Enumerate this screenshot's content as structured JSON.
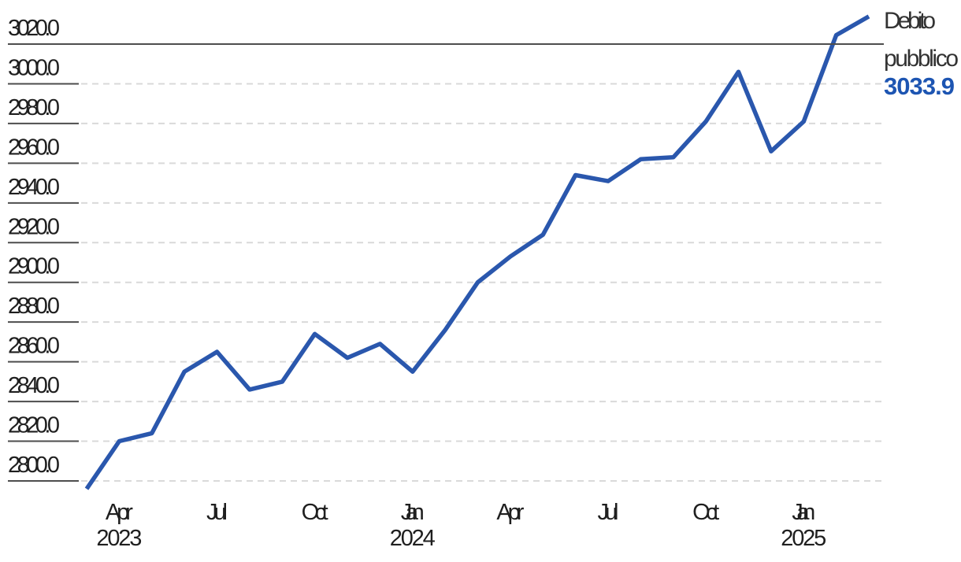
{
  "page": {
    "background": "#ffffff"
  },
  "chart_data": {
    "type": "line",
    "title": "",
    "series": [
      {
        "name": "Debito pubblico",
        "color": "#2a57ad",
        "categories": [
          "Mar 2023",
          "Apr 2023",
          "May 2023",
          "Jun 2023",
          "Jul 2023",
          "Aug 2023",
          "Sep 2023",
          "Oct 2023",
          "Nov 2023",
          "Dec 2023",
          "Jan 2024",
          "Feb 2024",
          "Mar 2024",
          "Apr 2024",
          "May 2024",
          "Jun 2024",
          "Jul 2024",
          "Aug 2024",
          "Sep 2024",
          "Oct 2024",
          "Nov 2024",
          "Dec 2024",
          "Jan 2025",
          "Feb 2025",
          "Mar 2025"
        ],
        "values": [
          2796,
          2820,
          2824,
          2855,
          2865,
          2846,
          2850,
          2874,
          2862,
          2869,
          2855,
          2876,
          2900,
          2913,
          2924,
          2954,
          2951,
          2962,
          2963,
          2981,
          3006,
          2966,
          2981,
          3024.5,
          3033.9
        ]
      }
    ],
    "y_axis": {
      "min": 2800,
      "max": 3020,
      "tick_step": 20,
      "tick_labels": [
        "3020.0",
        "3000.0",
        "2980.0",
        "2960.0",
        "2940.0",
        "2920.0",
        "2900.0",
        "2880.0",
        "2860.0",
        "2840.0",
        "2820.0",
        "2800.0"
      ],
      "grid_style": "dashed",
      "grid_color": "#d9d9d9",
      "tick_color": "#4d4d4d",
      "label_color": "#1f1f1f"
    },
    "x_axis": {
      "label_color": "#1f1f1f",
      "ticks": [
        {
          "index": 1,
          "month": "Apr",
          "year": "2023"
        },
        {
          "index": 4,
          "month": "Jul",
          "year": ""
        },
        {
          "index": 7,
          "month": "Oct",
          "year": ""
        },
        {
          "index": 10,
          "month": "Jan",
          "year": "2024"
        },
        {
          "index": 13,
          "month": "Apr",
          "year": ""
        },
        {
          "index": 16,
          "month": "Jul",
          "year": ""
        },
        {
          "index": 19,
          "month": "Oct",
          "year": ""
        },
        {
          "index": 22,
          "month": "Jan",
          "year": "2025"
        }
      ]
    },
    "legend": {
      "position": "right",
      "label_lines": [
        "Debito",
        "pubblico"
      ],
      "value": "3033.9",
      "label_color": "#333333",
      "value_color": "#1d55b2"
    }
  }
}
